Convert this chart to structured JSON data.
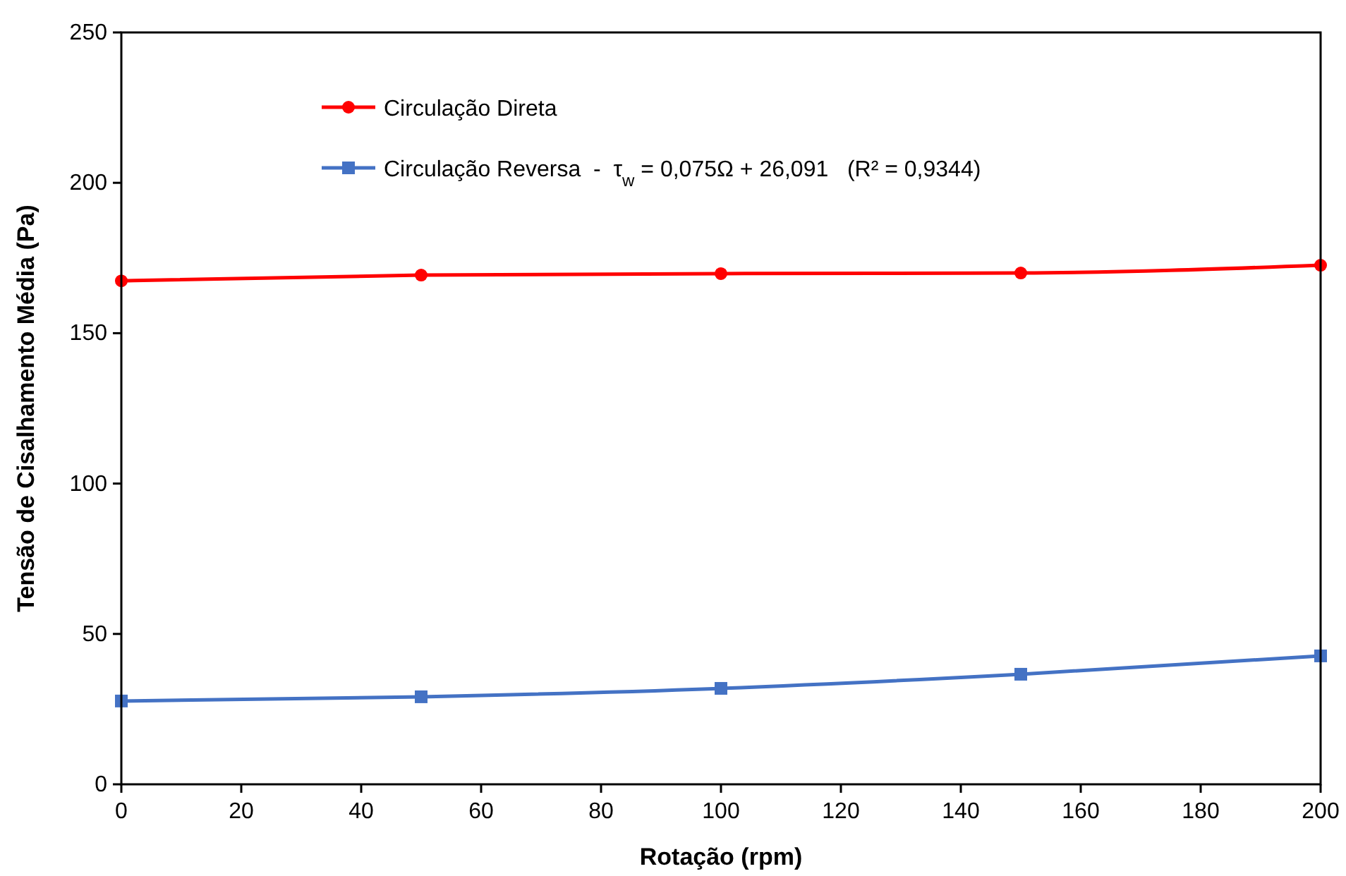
{
  "chart_data": {
    "type": "line",
    "xlabel": "Rotação (rpm)",
    "ylabel": "Tensão de Cisalhamento Média (Pa)",
    "x": [
      0,
      50,
      100,
      150,
      200
    ],
    "series": [
      {
        "name": "Circulação Direta",
        "color": "#ff0000",
        "marker": "circle",
        "values": [
          167.4,
          169.3,
          169.8,
          170.0,
          172.6
        ]
      },
      {
        "name": "Circulação Reversa  -  τ$_{w}$ = 0,075Ω + 26,091   (R² = 0,9344)",
        "color": "#4472c4",
        "marker": "square",
        "values": [
          27.7,
          29.1,
          31.9,
          36.6,
          42.7
        ]
      }
    ],
    "xlim": [
      0,
      200
    ],
    "xticks": [
      0,
      20,
      40,
      60,
      80,
      100,
      120,
      140,
      160,
      180,
      200
    ],
    "ylim": [
      0,
      250
    ],
    "yticks": [
      0,
      50,
      100,
      150,
      200,
      250
    ],
    "grid": false,
    "legend": "top left",
    "line_style": "solid"
  }
}
